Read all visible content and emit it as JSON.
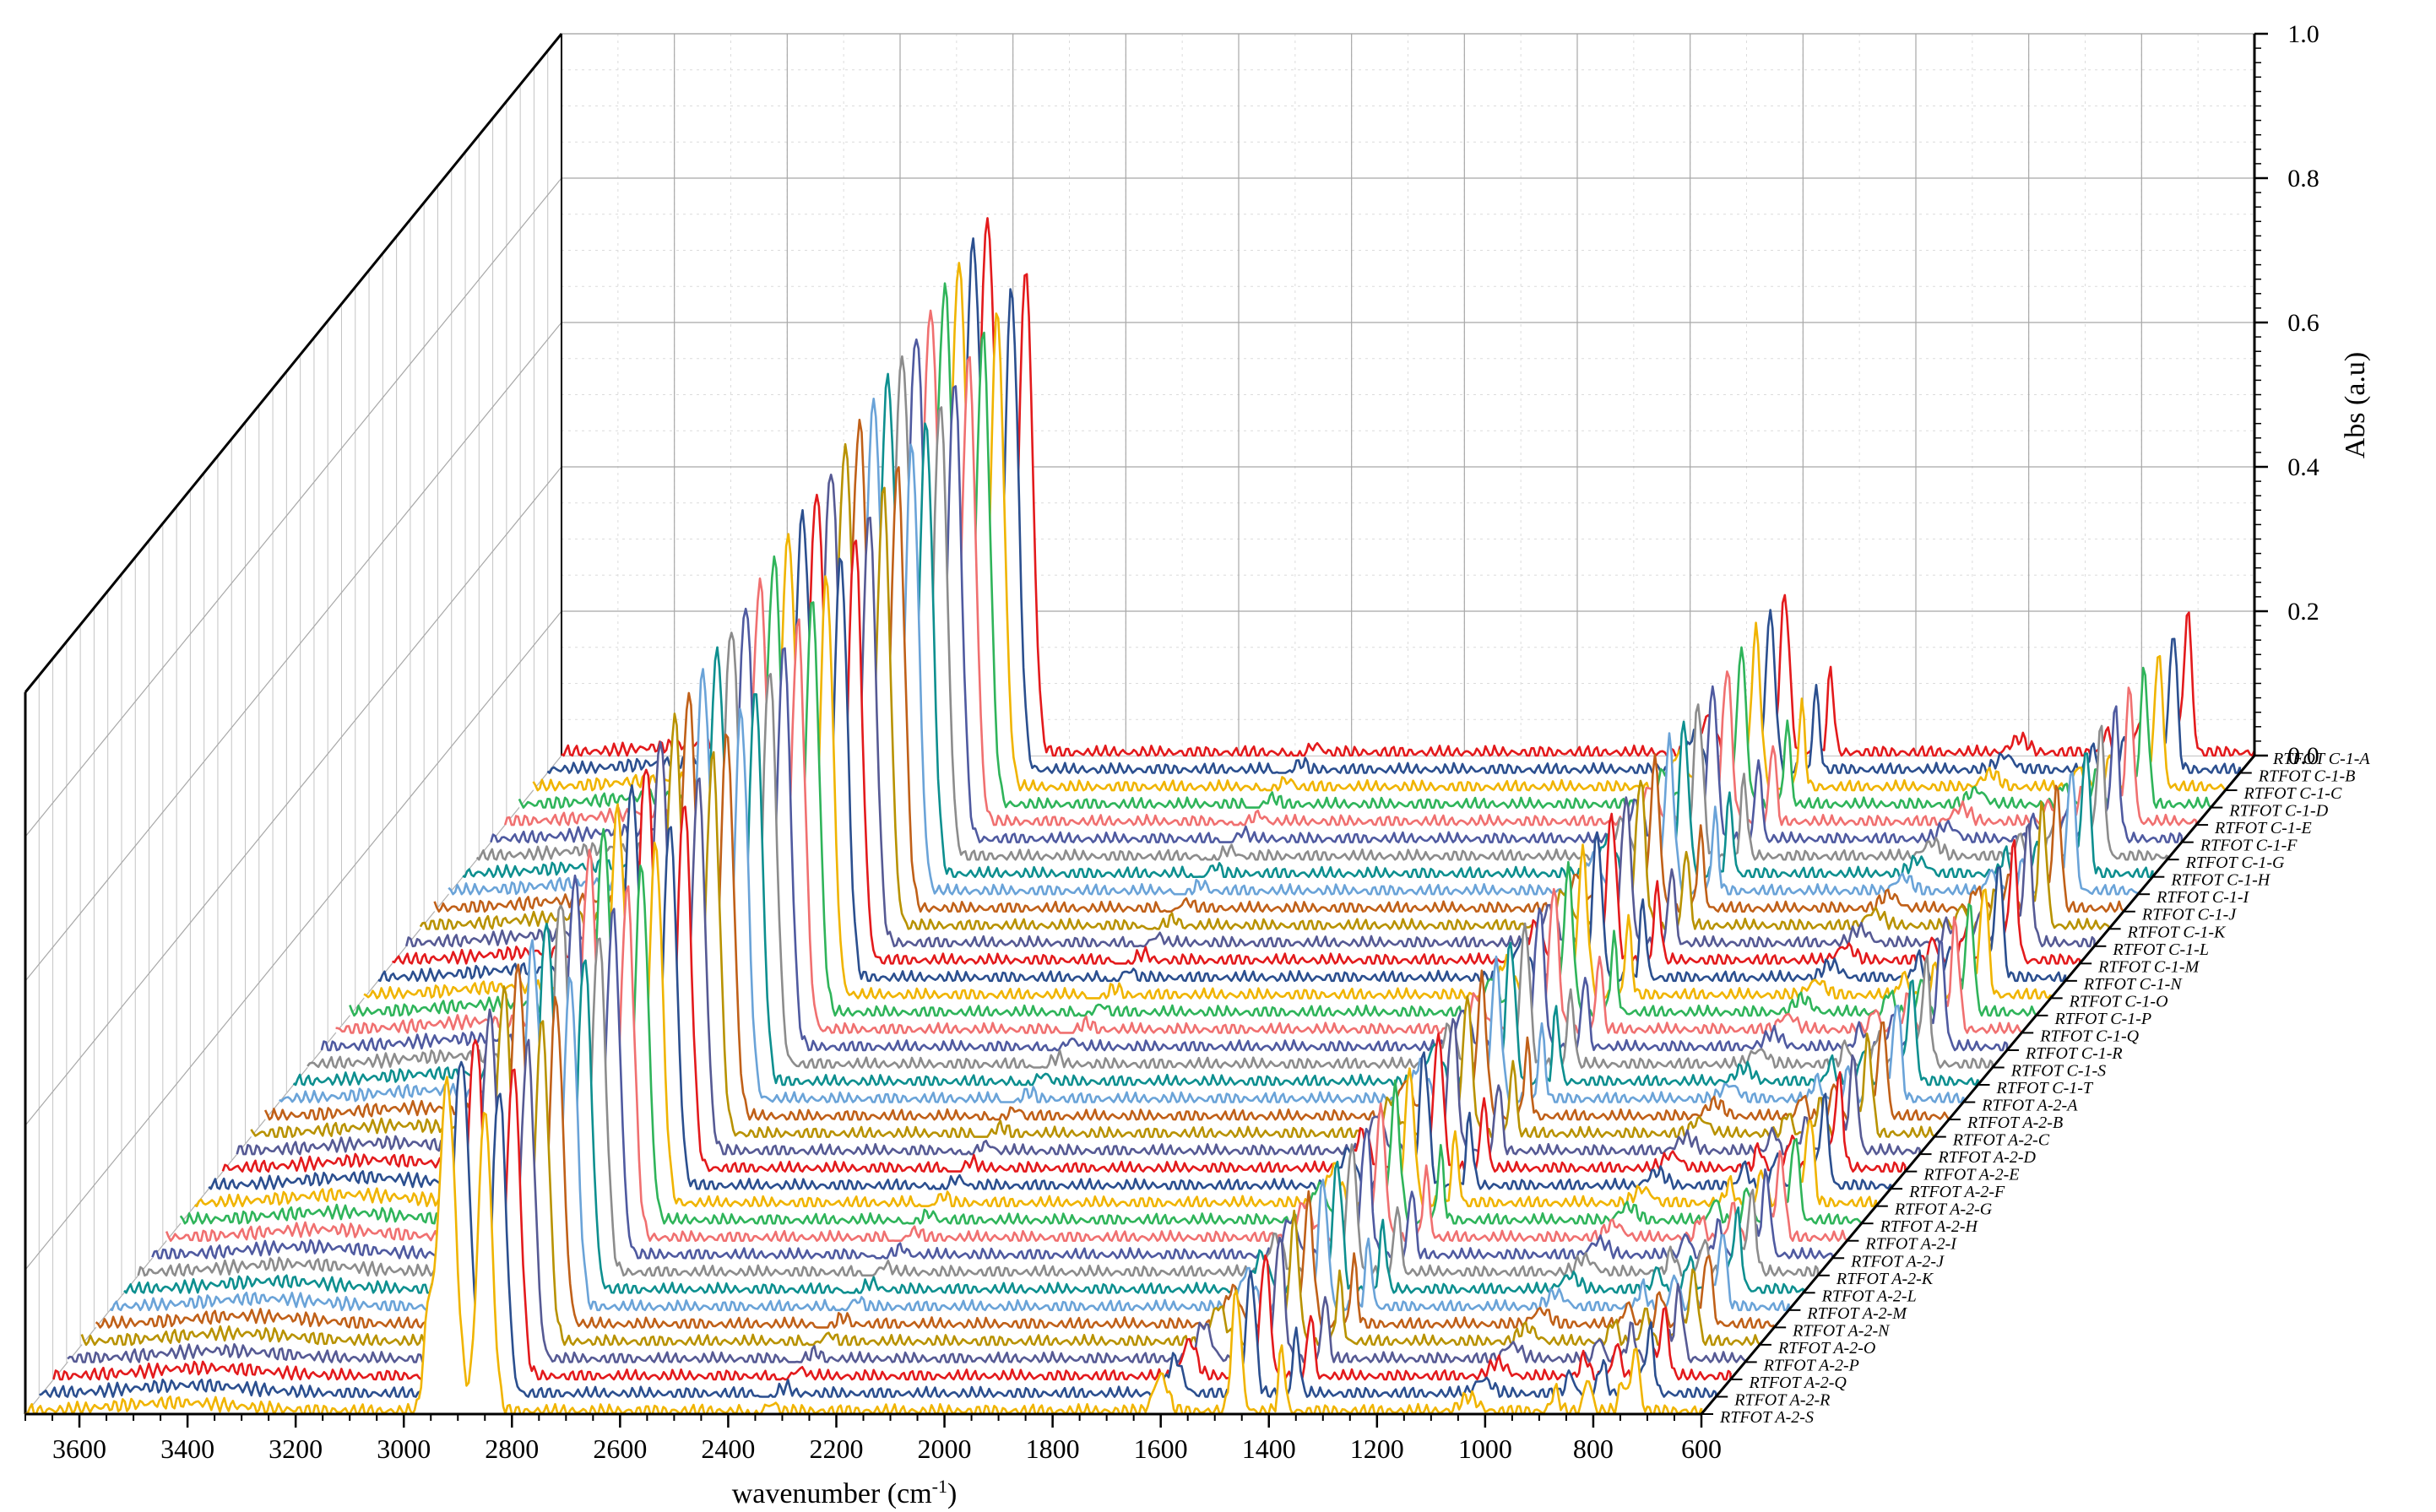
{
  "chart_data": {
    "type": "line",
    "style": "3d-waterfall",
    "title": "",
    "xlabel": "wavenumber (cm",
    "xlabel_superscript": "-1",
    "xlabel_suffix": ")",
    "zlabel": "Abs (a.u)",
    "x_range": [
      3700,
      600
    ],
    "x_ticks": [
      "3600",
      "3400",
      "3200",
      "3000",
      "2800",
      "2600",
      "2400",
      "2200",
      "2000",
      "1800",
      "1600",
      "1400",
      "1200",
      "1000",
      "800",
      "600"
    ],
    "z_range": [
      0,
      1
    ],
    "z_ticks": [
      "0.0",
      "0.2",
      "0.4",
      "0.6",
      "0.8",
      "1.0"
    ],
    "grid": true,
    "series_names": [
      "RTFOT C-1-A",
      "RTFOT C-1-B",
      "RTFOT C-1-C",
      "RTFOT C-1-D",
      "RTFOT C-1-E",
      "RTFOT C-1-F",
      "RTFOT C-1-G",
      "RTFOT C-1-H",
      "RTFOT C-1-I",
      "RTFOT C-1-J",
      "RTFOT C-1-K",
      "RTFOT C-1-L",
      "RTFOT C-1-M",
      "RTFOT C-1-N",
      "RTFOT C-1-O",
      "RTFOT C-1-P",
      "RTFOT C-1-Q",
      "RTFOT C-1-R",
      "RTFOT C-1-S",
      "RTFOT C-1-T",
      "RTFOT A-2-A",
      "RTFOT A-2-B",
      "RTFOT A-2-C",
      "RTFOT A-2-D",
      "RTFOT A-2-E",
      "RTFOT A-2-F",
      "RTFOT A-2-G",
      "RTFOT A-2-H",
      "RTFOT A-2-I",
      "RTFOT A-2-J",
      "RTFOT A-2-K",
      "RTFOT A-2-L",
      "RTFOT A-2-M",
      "RTFOT A-2-N",
      "RTFOT A-2-O",
      "RTFOT A-2-P",
      "RTFOT A-2-Q",
      "RTFOT A-2-R",
      "RTFOT A-2-S"
    ],
    "series_colors": [
      "#e31a1c",
      "#2b4f8f",
      "#f0b400",
      "#2fb45a",
      "#f07070",
      "#4f5aa0",
      "#8c8c8c",
      "#0d8f8f",
      "#6aa3d8",
      "#c06018",
      "#b89200",
      "#565a94"
    ],
    "spectral_peaks": [
      {
        "wavenumber": 2920,
        "abs": 0.56,
        "width": 22
      },
      {
        "wavenumber": 2850,
        "abs": 0.51,
        "width": 18
      },
      {
        "wavenumber": 2955,
        "abs": 0.12,
        "width": 12
      },
      {
        "wavenumber": 1600,
        "abs": 0.05,
        "width": 18
      },
      {
        "wavenumber": 1460,
        "abs": 0.17,
        "width": 12
      },
      {
        "wavenumber": 1376,
        "abs": 0.09,
        "width": 8
      },
      {
        "wavenumber": 1030,
        "abs": 0.02,
        "width": 22
      },
      {
        "wavenumber": 870,
        "abs": 0.03,
        "width": 10
      },
      {
        "wavenumber": 810,
        "abs": 0.045,
        "width": 10
      },
      {
        "wavenumber": 746,
        "abs": 0.04,
        "width": 10
      },
      {
        "wavenumber": 722,
        "abs": 0.09,
        "width": 10
      }
    ]
  }
}
